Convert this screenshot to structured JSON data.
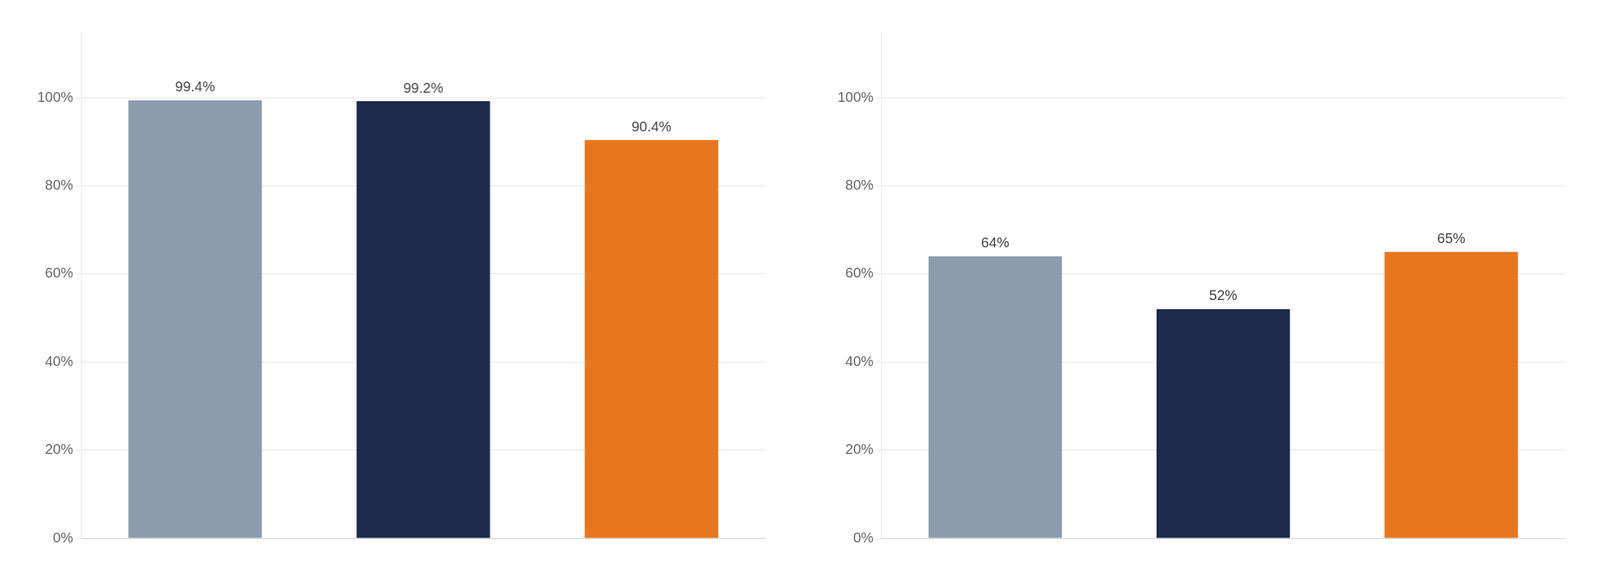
{
  "chart_data": [
    {
      "type": "bar",
      "categories": [
        null,
        null,
        null
      ],
      "values": [
        0.994,
        0.992,
        0.904
      ],
      "value_labels": [
        "99.4%",
        "99.2%",
        "90.4%"
      ],
      "colors": [
        "#8b9caf",
        "#1c2b4b",
        "#e8761e"
      ],
      "ylim": [
        0,
        1.15
      ],
      "yticks": [
        {
          "value": 0.0,
          "label": "0%"
        },
        {
          "value": 0.2,
          "label": "20%"
        },
        {
          "value": 0.4,
          "label": "40%"
        },
        {
          "value": 0.6,
          "label": "60%"
        },
        {
          "value": 0.8,
          "label": "80%"
        },
        {
          "value": 1.0,
          "label": "100%"
        }
      ],
      "grid": true,
      "data_labels": true,
      "tick_labels": "y"
    },
    {
      "type": "bar",
      "categories": [
        null,
        null,
        null
      ],
      "values": [
        0.64,
        0.52,
        0.65
      ],
      "value_labels": [
        "64%",
        "52%",
        "65%"
      ],
      "colors": [
        "#8b9caf",
        "#1c2b4b",
        "#e8761e"
      ],
      "ylim": [
        0,
        1.15
      ],
      "yticks": [
        {
          "value": 0.0,
          "label": "0%"
        },
        {
          "value": 0.2,
          "label": "20%"
        },
        {
          "value": 0.4,
          "label": "40%"
        },
        {
          "value": 0.6,
          "label": "60%"
        },
        {
          "value": 0.8,
          "label": "80%"
        },
        {
          "value": 1.0,
          "label": "100%"
        }
      ],
      "grid": true,
      "data_labels": true,
      "tick_labels": "y"
    }
  ]
}
